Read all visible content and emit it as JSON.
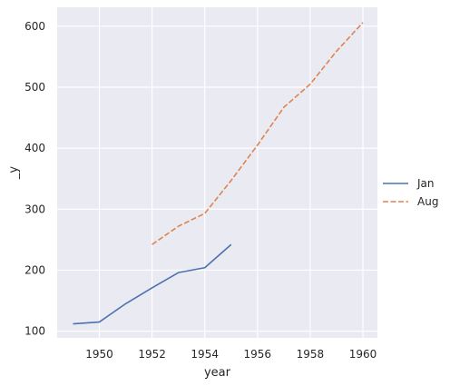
{
  "chart_data": {
    "type": "line",
    "xlabel": "year",
    "ylabel": "_y",
    "xlim": [
      1948.4,
      1960.55
    ],
    "ylim": [
      89,
      631
    ],
    "xticks": [
      1950,
      1952,
      1954,
      1956,
      1958,
      1960
    ],
    "yticks": [
      100,
      200,
      300,
      400,
      500,
      600
    ],
    "grid": true,
    "legend_position": "right",
    "series": [
      {
        "name": "Jan",
        "style": "solid",
        "color": "#4c72b0",
        "x": [
          1949,
          1950,
          1951,
          1952,
          1953,
          1954,
          1955
        ],
        "y": [
          112,
          115,
          145,
          171,
          196,
          204,
          242
        ]
      },
      {
        "name": "Aug",
        "style": "dashed",
        "color": "#dd8452",
        "x": [
          1952,
          1953,
          1954,
          1955,
          1956,
          1957,
          1958,
          1959,
          1960
        ],
        "y": [
          242,
          272,
          293,
          347,
          405,
          467,
          505,
          559,
          606
        ]
      }
    ]
  },
  "colors": {
    "plot_background": "#eaeaf2",
    "grid": "#ffffff",
    "text": "#262626"
  }
}
